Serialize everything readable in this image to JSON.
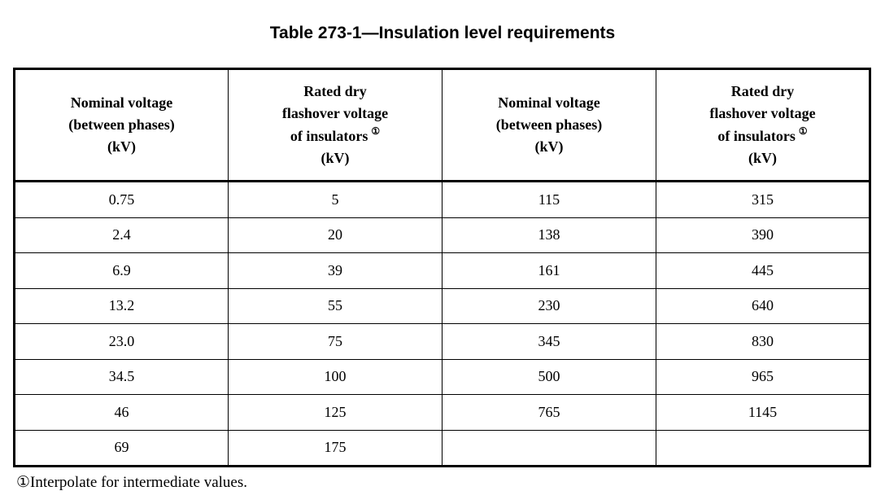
{
  "page": {
    "title": "Table 273-1—Insulation level requirements",
    "footnote_marker": "①",
    "footnote_text": "Interpolate for intermediate values."
  },
  "table": {
    "headers": [
      {
        "lines": [
          "Nominal voltage",
          "(between phases)",
          "(kV)"
        ]
      },
      {
        "lines": [
          "Rated dry",
          "flashover voltage",
          "of insulators",
          "(kV)"
        ],
        "sup": "①"
      },
      {
        "lines": [
          "Nominal voltage",
          "(between phases)",
          "(kV)"
        ]
      },
      {
        "lines": [
          "Rated dry",
          "flashover voltage",
          "of insulators",
          "(kV)"
        ],
        "sup": "①"
      }
    ],
    "rows": [
      [
        "0.75",
        "5",
        "115",
        "315"
      ],
      [
        "2.4",
        "20",
        "138",
        "390"
      ],
      [
        "6.9",
        "39",
        "161",
        "445"
      ],
      [
        "13.2",
        "55",
        "230",
        "640"
      ],
      [
        "23.0",
        "75",
        "345",
        "830"
      ],
      [
        "34.5",
        "100",
        "500",
        "965"
      ],
      [
        "46",
        "125",
        "765",
        "1145"
      ],
      [
        "69",
        "175",
        "",
        ""
      ]
    ]
  }
}
